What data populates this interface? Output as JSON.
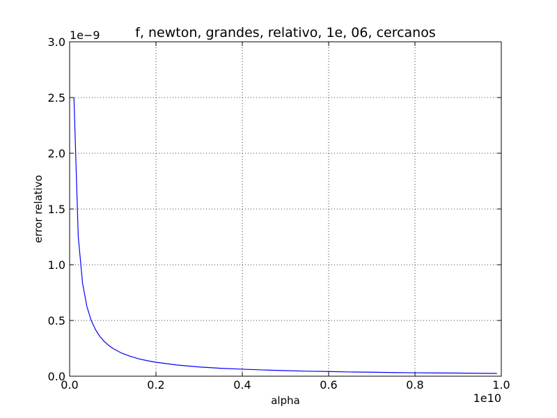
{
  "chart_data": {
    "type": "line",
    "title": "f, newton, grandes, relativo, 1e, 06, cercanos",
    "xlabel": "alpha",
    "ylabel": "error relativo",
    "x_multiplier_label": "1e10",
    "y_multiplier_label": "1e−9",
    "xlim": [
      0,
      1.0
    ],
    "ylim": [
      0,
      3.0
    ],
    "x_ticks": [
      0.0,
      0.2,
      0.4,
      0.6,
      0.8,
      1.0
    ],
    "x_tick_labels": [
      "0.0",
      "0.2",
      "0.4",
      "0.6",
      "0.8",
      "1.0"
    ],
    "y_ticks": [
      0.0,
      0.5,
      1.0,
      1.5,
      2.0,
      2.5,
      3.0
    ],
    "y_tick_labels": [
      "0.0",
      "0.5",
      "1.0",
      "1.5",
      "2.0",
      "2.5",
      "3.0"
    ],
    "grid": true,
    "series": [
      {
        "color": "#0000ff",
        "x": [
          0.01,
          0.02,
          0.03,
          0.04,
          0.05,
          0.06,
          0.07,
          0.08,
          0.09,
          0.1,
          0.12,
          0.14,
          0.16,
          0.18,
          0.2,
          0.25,
          0.3,
          0.35,
          0.4,
          0.45,
          0.5,
          0.55,
          0.6,
          0.65,
          0.7,
          0.75,
          0.8,
          0.85,
          0.9,
          0.95,
          0.99
        ],
        "y": [
          2.5,
          1.25,
          0.833,
          0.625,
          0.5,
          0.417,
          0.357,
          0.313,
          0.278,
          0.25,
          0.208,
          0.179,
          0.156,
          0.139,
          0.125,
          0.1,
          0.083,
          0.071,
          0.063,
          0.056,
          0.05,
          0.045,
          0.042,
          0.038,
          0.036,
          0.033,
          0.031,
          0.029,
          0.028,
          0.026,
          0.025
        ]
      }
    ]
  }
}
